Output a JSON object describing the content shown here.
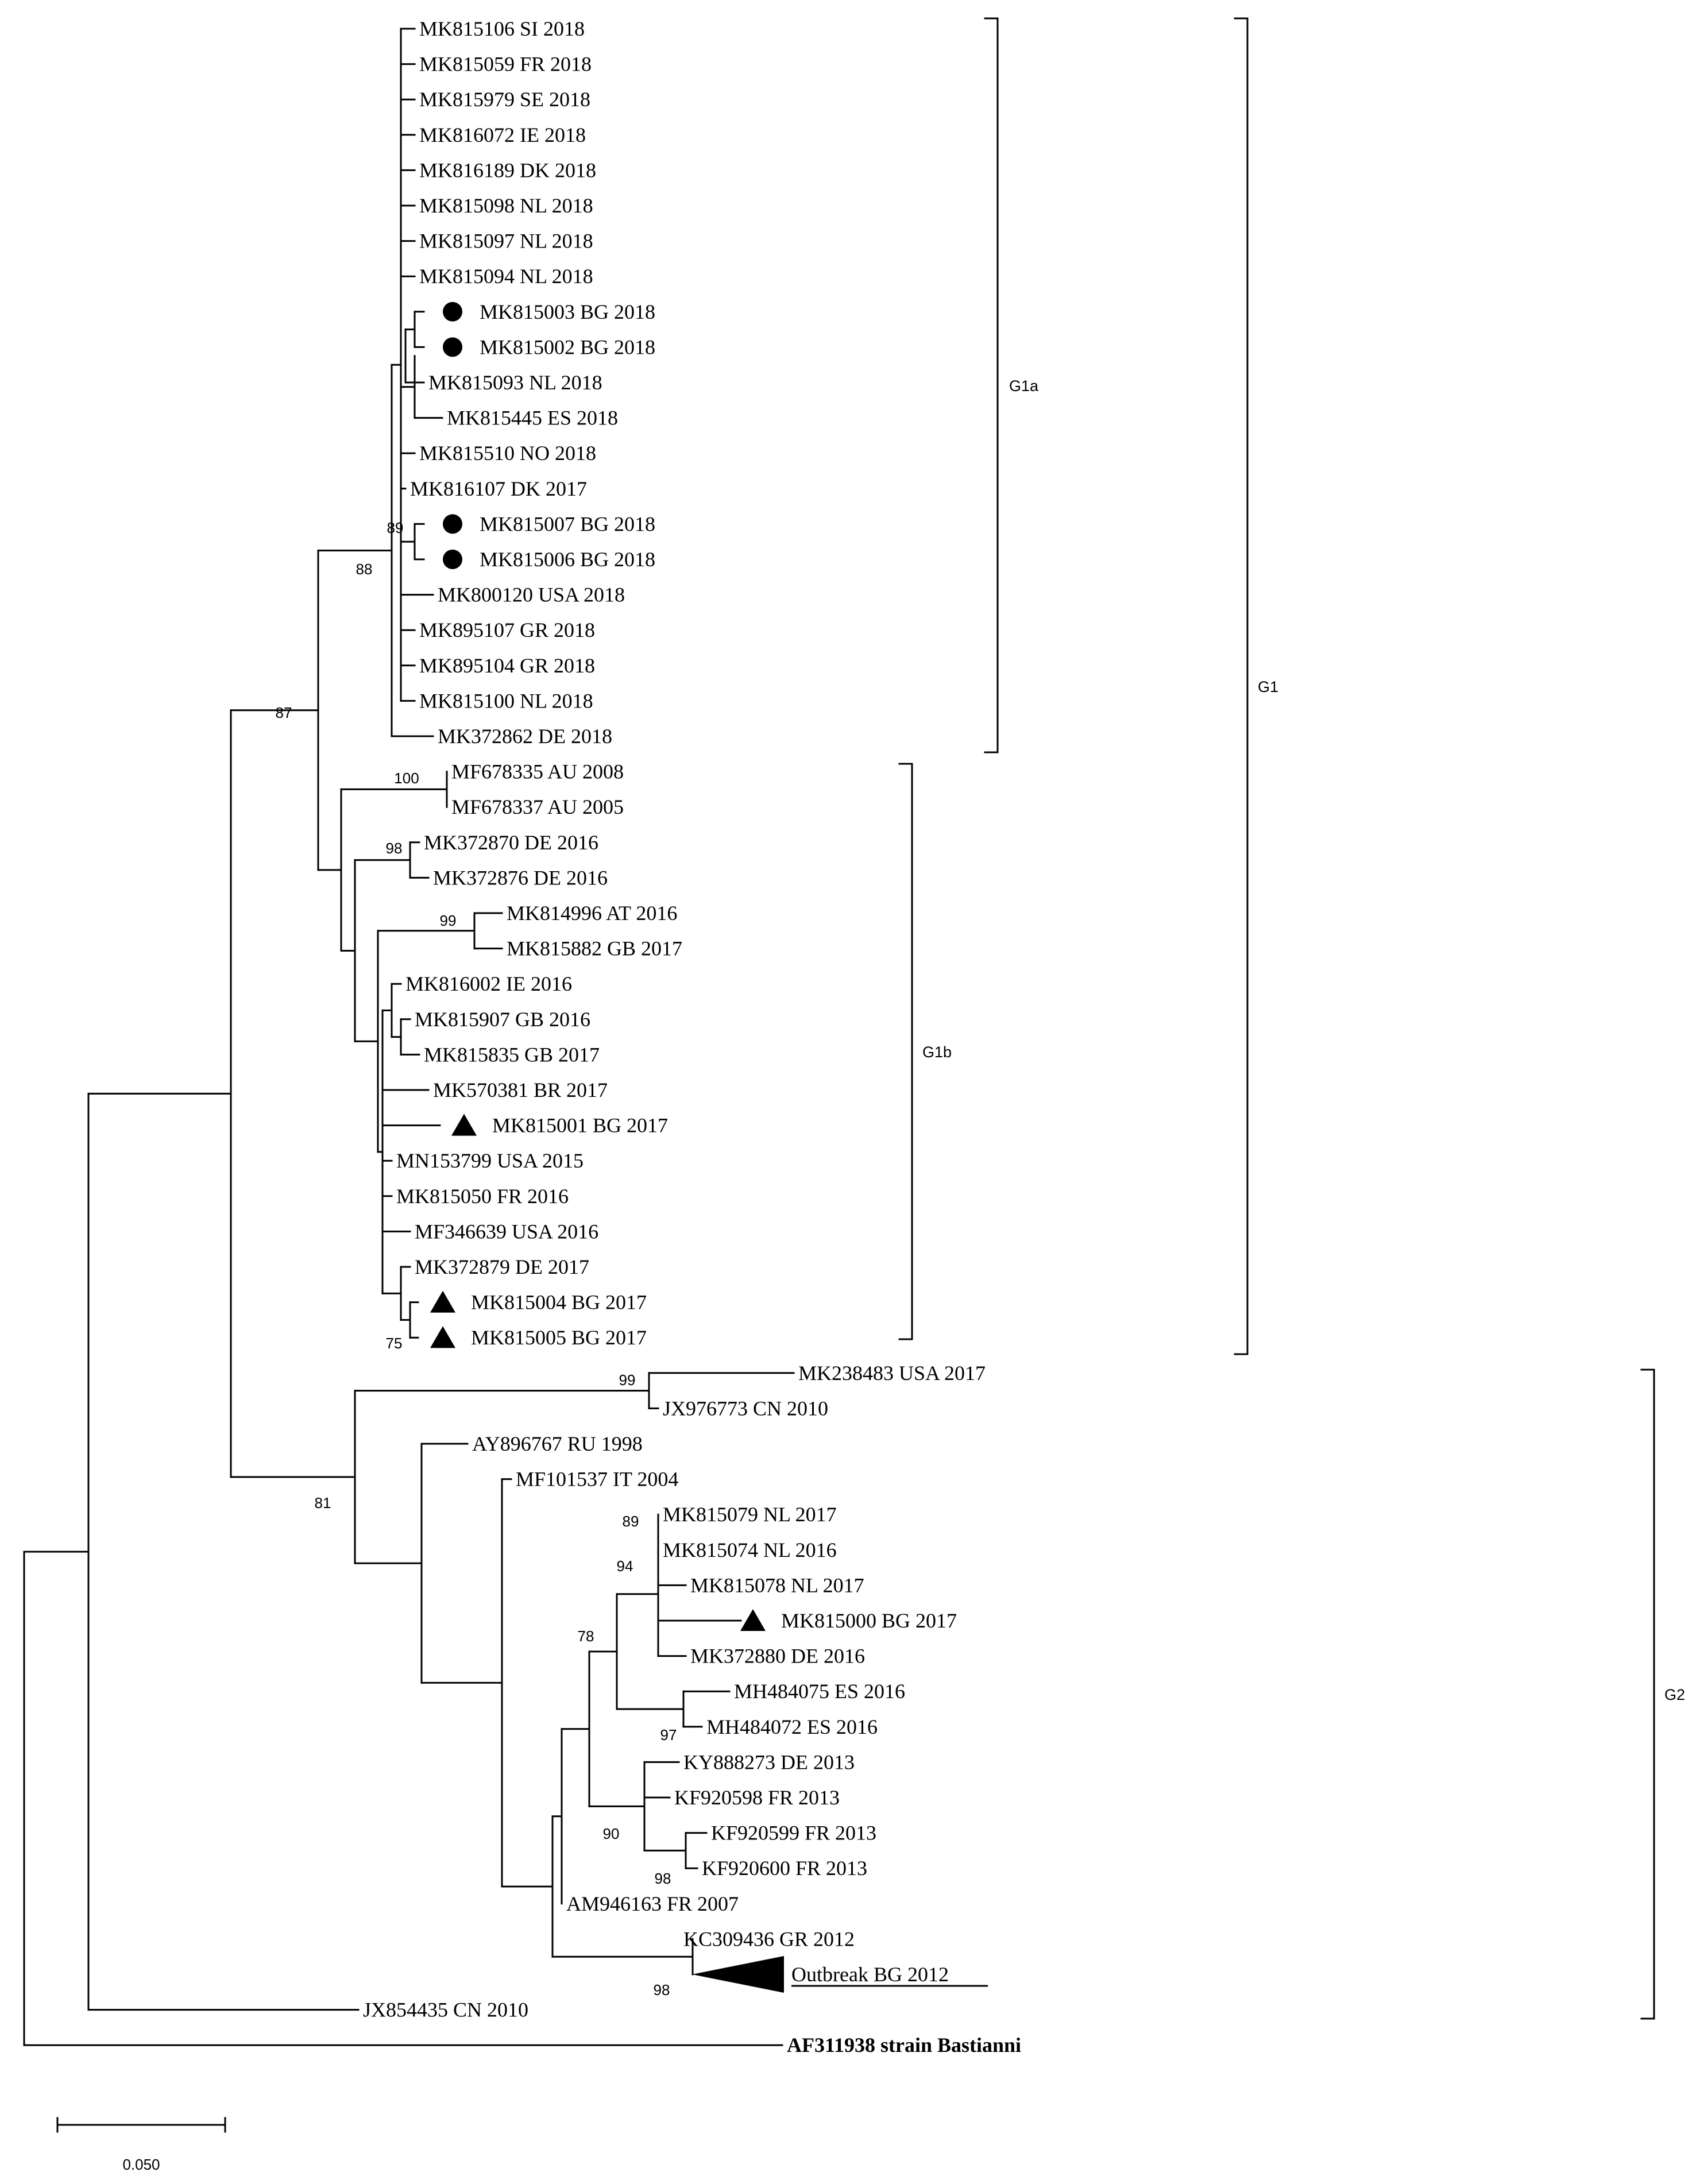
{
  "tree": {
    "tips": [
      {
        "id": "MK815106",
        "label": "MK815106 SI 2018"
      },
      {
        "id": "MK815059",
        "label": "MK815059 FR 2018"
      },
      {
        "id": "MK815979",
        "label": "MK815979 SE 2018"
      },
      {
        "id": "MK816072",
        "label": "MK816072 IE 2018"
      },
      {
        "id": "MK816189",
        "label": "MK816189 DK 2018"
      },
      {
        "id": "MK815098",
        "label": "MK815098 NL 2018"
      },
      {
        "id": "MK815097",
        "label": "MK815097 NL 2018"
      },
      {
        "id": "MK815094",
        "label": "MK815094 NL 2018"
      },
      {
        "id": "MK815003",
        "label": "MK815003 BG 2018",
        "marker": "circle",
        "color": "#1f8fd6"
      },
      {
        "id": "MK815002",
        "label": "MK815002 BG 2018",
        "marker": "circle",
        "color": "#1f8fd6"
      },
      {
        "id": "MK815093",
        "label": "MK815093 NL 2018"
      },
      {
        "id": "MK815445",
        "label": "MK815445 ES 2018"
      },
      {
        "id": "MK815510",
        "label": "MK815510 NO 2018"
      },
      {
        "id": "MK816107",
        "label": "MK816107 DK 2017"
      },
      {
        "id": "MK815007",
        "label": "MK815007 BG 2018",
        "marker": "circle",
        "color": "#1f8fd6"
      },
      {
        "id": "MK815006",
        "label": "MK815006 BG 2018",
        "marker": "circle",
        "color": "#1f8fd6"
      },
      {
        "id": "MK800120",
        "label": "MK800120 USA 2018"
      },
      {
        "id": "MK895107",
        "label": "MK895107 GR 2018"
      },
      {
        "id": "MK895104",
        "label": "MK895104 GR 2018"
      },
      {
        "id": "MK815100",
        "label": "MK815100 NL 2018"
      },
      {
        "id": "MK372862",
        "label": "MK372862 DE 2018"
      },
      {
        "id": "MF678335",
        "label": "MF678335 AU 2008"
      },
      {
        "id": "MF678337",
        "label": "MF678337 AU 2005"
      },
      {
        "id": "MK372870",
        "label": "MK372870 DE 2016"
      },
      {
        "id": "MK372876",
        "label": "MK372876 DE 2016"
      },
      {
        "id": "MK814996",
        "label": "MK814996 AT 2016"
      },
      {
        "id": "MK815882",
        "label": "MK815882 GB 2017"
      },
      {
        "id": "MK816002",
        "label": "MK816002 IE 2016"
      },
      {
        "id": "MK815907",
        "label": "MK815907 GB 2016"
      },
      {
        "id": "MK815835",
        "label": "MK815835 GB 2017"
      },
      {
        "id": "MK570381",
        "label": "MK570381 BR 2017"
      },
      {
        "id": "MK815001",
        "label": "MK815001 BG 2017",
        "marker": "triangle",
        "color": "#19b35a"
      },
      {
        "id": "MN153799",
        "label": "MN153799 USA 2015"
      },
      {
        "id": "MK815050",
        "label": "MK815050 FR 2016"
      },
      {
        "id": "MF346639",
        "label": "MF346639 USA 2016"
      },
      {
        "id": "MK372879",
        "label": "MK372879 DE 2017"
      },
      {
        "id": "MK815004",
        "label": "MK815004 BG 2017",
        "marker": "triangle",
        "color": "#19b35a"
      },
      {
        "id": "MK815005",
        "label": "MK815005 BG 2017",
        "marker": "triangle",
        "color": "#19b35a"
      },
      {
        "id": "MK238483",
        "label": "MK238483 USA 2017"
      },
      {
        "id": "JX976773",
        "label": "JX976773 CN 2010"
      },
      {
        "id": "AY896767",
        "label": "AY896767 RU 1998"
      },
      {
        "id": "MF101537",
        "label": "MF101537 IT 2004"
      },
      {
        "id": "MK815079",
        "label": "MK815079 NL 2017"
      },
      {
        "id": "MK815074",
        "label": "MK815074 NL 2016"
      },
      {
        "id": "MK815078",
        "label": "MK815078 NL 2017"
      },
      {
        "id": "MK815000",
        "label": "MK815000 BG 2017",
        "marker": "triangle",
        "color": "#19b35a"
      },
      {
        "id": "MK372880",
        "label": "MK372880 DE 2016"
      },
      {
        "id": "MH484075",
        "label": "MH484075 ES 2016"
      },
      {
        "id": "MH484072",
        "label": "MH484072 ES 2016"
      },
      {
        "id": "KY888273",
        "label": "KY888273 DE 2013"
      },
      {
        "id": "KF920598",
        "label": "KF920598 FR 2013"
      },
      {
        "id": "KF920599",
        "label": "KF920599 FR 2013"
      },
      {
        "id": "KF920600",
        "label": "KF920600 FR 2013"
      },
      {
        "id": "AM946163",
        "label": "AM946163 FR 2007"
      },
      {
        "id": "KC309436",
        "label": "KC309436 GR 2012"
      },
      {
        "id": "OUTBREAK",
        "label": "Outbreak BG 2012",
        "collapsed": true,
        "underline": true
      },
      {
        "id": "JX854435",
        "label": "JX854435 CN 2010"
      },
      {
        "id": "AF311938",
        "label": "AF311938 strain Bastianni",
        "color": "#e8202a",
        "bold": true
      }
    ],
    "bootstrap": [
      "88",
      "87",
      "89",
      "100",
      "98",
      "99",
      "75",
      "99",
      "81",
      "89",
      "94",
      "78",
      "97",
      "90",
      "98",
      "98"
    ],
    "clades": [
      {
        "id": "g1a",
        "label": "G1a"
      },
      {
        "id": "g1b",
        "label": "G1b"
      },
      {
        "id": "g1",
        "label": "G1"
      },
      {
        "id": "g2",
        "label": "G2"
      }
    ],
    "scale_bar": {
      "label": "0.050",
      "value": 0.05
    }
  }
}
